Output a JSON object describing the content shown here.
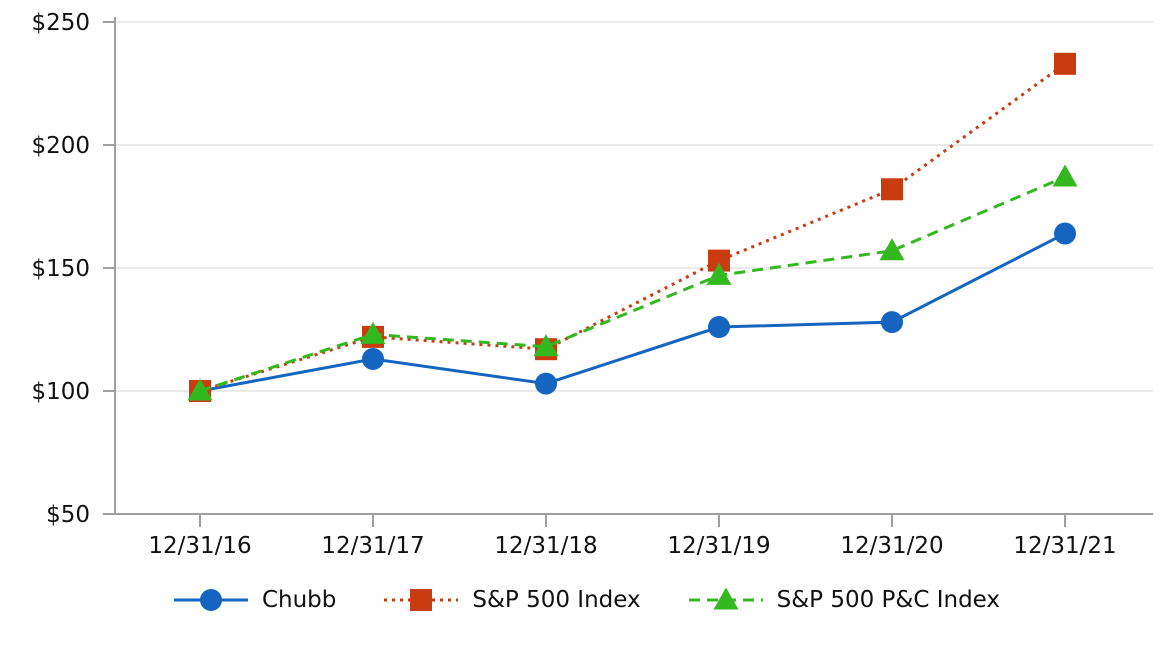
{
  "chart_data": {
    "type": "line",
    "title": "",
    "xlabel": "",
    "ylabel": "",
    "categories": [
      "12/31/16",
      "12/31/17",
      "12/31/18",
      "12/31/19",
      "12/31/20",
      "12/31/21"
    ],
    "series": [
      {
        "name": "Chubb",
        "color": "#1565c0",
        "marker": "circle",
        "line_style": "solid",
        "values": [
          100,
          113,
          103,
          126,
          128,
          164
        ]
      },
      {
        "name": "S&P 500 Index",
        "color": "#c93c10",
        "marker": "square",
        "line_style": "dotted",
        "values": [
          100,
          122,
          117,
          153,
          182,
          233
        ]
      },
      {
        "name": "S&P 500 P&C Index",
        "color": "#33b81f",
        "marker": "triangle",
        "line_style": "dashed",
        "values": [
          100,
          123,
          118,
          147,
          157,
          187
        ]
      }
    ],
    "y_axis": {
      "min": 50,
      "max": 250,
      "tick_step": 50,
      "tick_values": [
        50,
        100,
        150,
        200,
        250
      ],
      "tick_labels": [
        "$50",
        "$100",
        "$150",
        "$200",
        "$250"
      ]
    },
    "grid": "horizontal",
    "legend_position": "bottom",
    "style": {
      "background": "#ffffff",
      "axis_color": "#a0a0a0",
      "grid_color": "#e4e4e4",
      "text_color": "#111111"
    }
  }
}
